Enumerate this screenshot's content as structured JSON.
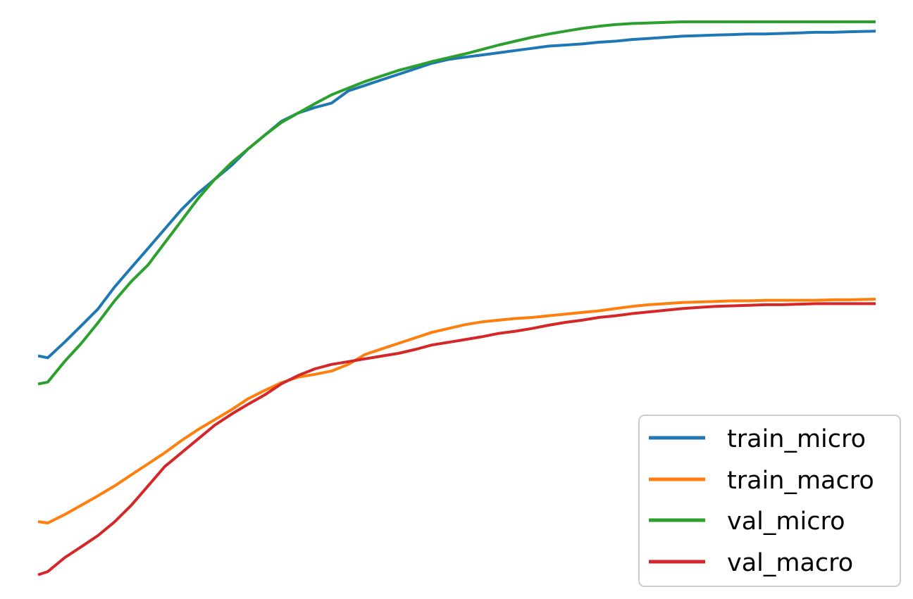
{
  "chart_data": {
    "type": "line",
    "title": "",
    "xlabel": "",
    "ylabel": "",
    "axes_visible": false,
    "grid": false,
    "legend_position": "lower-right",
    "xlim": [
      0,
      1
    ],
    "ylim": [
      0,
      1
    ],
    "series": [
      {
        "name": "train_micro",
        "color": "#1f77b4",
        "x": [
          0,
          0.01,
          0.03,
          0.05,
          0.07,
          0.09,
          0.11,
          0.13,
          0.15,
          0.17,
          0.19,
          0.21,
          0.23,
          0.25,
          0.27,
          0.29,
          0.31,
          0.33,
          0.35,
          0.37,
          0.39,
          0.41,
          0.43,
          0.45,
          0.47,
          0.49,
          0.51,
          0.53,
          0.55,
          0.57,
          0.59,
          0.61,
          0.63,
          0.65,
          0.67,
          0.69,
          0.71,
          0.73,
          0.75,
          0.77,
          0.79,
          0.81,
          0.83,
          0.85,
          0.87,
          0.89,
          0.91,
          0.93,
          0.95,
          0.97,
          1.0
        ],
        "values": [
          0.395,
          0.392,
          0.42,
          0.45,
          0.48,
          0.52,
          0.555,
          0.59,
          0.625,
          0.66,
          0.69,
          0.715,
          0.74,
          0.77,
          0.795,
          0.82,
          0.835,
          0.845,
          0.853,
          0.875,
          0.885,
          0.895,
          0.905,
          0.915,
          0.925,
          0.932,
          0.936,
          0.94,
          0.944,
          0.948,
          0.952,
          0.956,
          0.958,
          0.96,
          0.963,
          0.965,
          0.968,
          0.97,
          0.972,
          0.974,
          0.975,
          0.976,
          0.977,
          0.978,
          0.978,
          0.979,
          0.98,
          0.981,
          0.981,
          0.982,
          0.983
        ]
      },
      {
        "name": "train_macro",
        "color": "#ff7f0e",
        "x": [
          0,
          0.01,
          0.03,
          0.05,
          0.07,
          0.09,
          0.11,
          0.13,
          0.15,
          0.17,
          0.19,
          0.21,
          0.23,
          0.25,
          0.27,
          0.29,
          0.31,
          0.33,
          0.35,
          0.37,
          0.39,
          0.41,
          0.43,
          0.45,
          0.47,
          0.49,
          0.51,
          0.53,
          0.55,
          0.57,
          0.59,
          0.61,
          0.63,
          0.65,
          0.67,
          0.69,
          0.71,
          0.73,
          0.75,
          0.77,
          0.79,
          0.81,
          0.83,
          0.85,
          0.87,
          0.89,
          0.91,
          0.93,
          0.95,
          0.97,
          1.0
        ],
        "values": [
          0.095,
          0.093,
          0.108,
          0.125,
          0.142,
          0.16,
          0.18,
          0.2,
          0.22,
          0.242,
          0.262,
          0.28,
          0.298,
          0.318,
          0.333,
          0.347,
          0.357,
          0.362,
          0.368,
          0.38,
          0.398,
          0.408,
          0.418,
          0.428,
          0.438,
          0.445,
          0.452,
          0.457,
          0.46,
          0.463,
          0.465,
          0.468,
          0.471,
          0.474,
          0.477,
          0.481,
          0.485,
          0.488,
          0.49,
          0.492,
          0.493,
          0.494,
          0.495,
          0.495,
          0.496,
          0.496,
          0.496,
          0.496,
          0.497,
          0.497,
          0.498
        ]
      },
      {
        "name": "val_micro",
        "color": "#2ca02c",
        "x": [
          0,
          0.01,
          0.03,
          0.05,
          0.07,
          0.09,
          0.11,
          0.13,
          0.15,
          0.17,
          0.19,
          0.21,
          0.23,
          0.25,
          0.27,
          0.29,
          0.31,
          0.33,
          0.35,
          0.37,
          0.39,
          0.41,
          0.43,
          0.45,
          0.47,
          0.49,
          0.51,
          0.53,
          0.55,
          0.57,
          0.59,
          0.61,
          0.63,
          0.65,
          0.67,
          0.69,
          0.71,
          0.73,
          0.75,
          0.77,
          0.79,
          0.81,
          0.83,
          0.85,
          0.87,
          0.89,
          0.91,
          0.93,
          0.95,
          0.97,
          1.0
        ],
        "values": [
          0.345,
          0.348,
          0.385,
          0.418,
          0.455,
          0.495,
          0.53,
          0.56,
          0.6,
          0.64,
          0.68,
          0.715,
          0.745,
          0.77,
          0.795,
          0.818,
          0.835,
          0.852,
          0.868,
          0.88,
          0.892,
          0.902,
          0.912,
          0.92,
          0.928,
          0.935,
          0.942,
          0.95,
          0.958,
          0.965,
          0.972,
          0.978,
          0.983,
          0.988,
          0.992,
          0.995,
          0.997,
          0.998,
          0.999,
          1.0,
          1.0,
          1.0,
          1.0,
          1.0,
          1.0,
          1.0,
          1.0,
          1.0,
          1.0,
          1.0,
          1.0
        ]
      },
      {
        "name": "val_macro",
        "color": "#d62728",
        "x": [
          0,
          0.01,
          0.03,
          0.05,
          0.07,
          0.09,
          0.11,
          0.13,
          0.15,
          0.17,
          0.19,
          0.21,
          0.23,
          0.25,
          0.27,
          0.29,
          0.31,
          0.33,
          0.35,
          0.37,
          0.39,
          0.41,
          0.43,
          0.45,
          0.47,
          0.49,
          0.51,
          0.53,
          0.55,
          0.57,
          0.59,
          0.61,
          0.63,
          0.65,
          0.67,
          0.69,
          0.71,
          0.73,
          0.75,
          0.77,
          0.79,
          0.81,
          0.83,
          0.85,
          0.87,
          0.89,
          0.91,
          0.93,
          0.95,
          0.97,
          1.0
        ],
        "values": [
          0.0,
          0.005,
          0.03,
          0.05,
          0.07,
          0.095,
          0.125,
          0.16,
          0.195,
          0.22,
          0.245,
          0.27,
          0.29,
          0.308,
          0.325,
          0.345,
          0.36,
          0.372,
          0.38,
          0.385,
          0.39,
          0.395,
          0.4,
          0.407,
          0.415,
          0.42,
          0.425,
          0.43,
          0.436,
          0.44,
          0.445,
          0.451,
          0.456,
          0.46,
          0.465,
          0.468,
          0.472,
          0.475,
          0.478,
          0.481,
          0.483,
          0.485,
          0.486,
          0.487,
          0.488,
          0.488,
          0.489,
          0.49,
          0.49,
          0.49,
          0.49
        ]
      }
    ]
  }
}
